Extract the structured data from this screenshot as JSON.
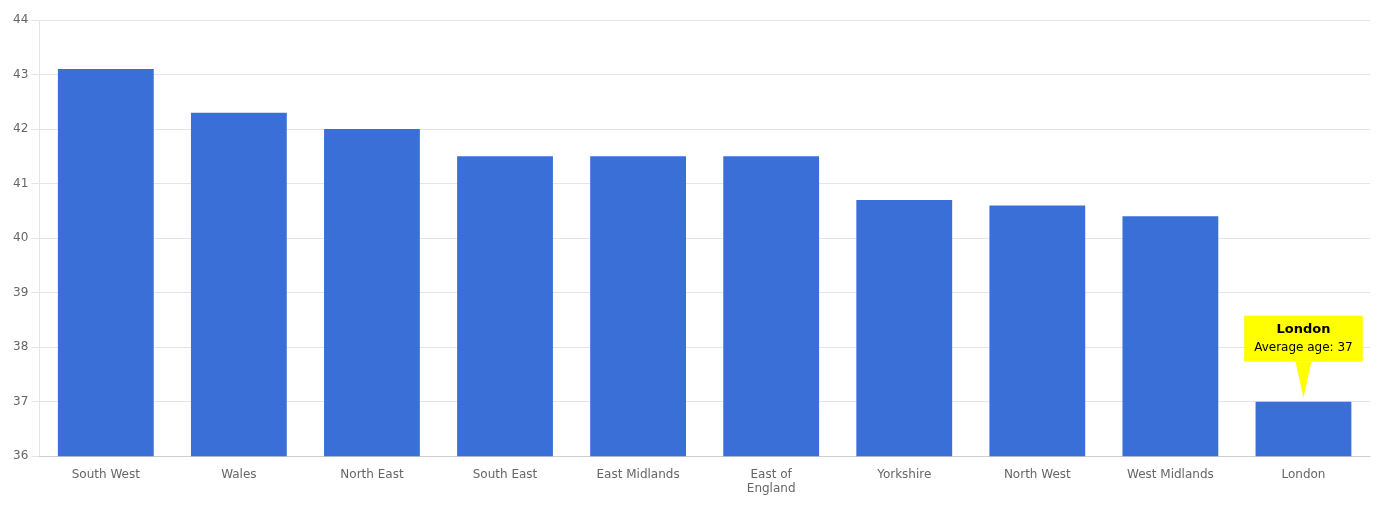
{
  "chart_data": {
    "type": "bar",
    "categories": [
      "South West",
      "Wales",
      "North East",
      "South East",
      "East Midlands",
      "East of\nEngland",
      "Yorkshire",
      "North West",
      "West Midlands",
      "London"
    ],
    "values": [
      43.1,
      42.3,
      42.0,
      41.5,
      41.5,
      41.5,
      40.7,
      40.6,
      40.4,
      37.0
    ],
    "color": "#3a6fd8",
    "ylim": [
      36,
      44
    ],
    "yticks": [
      36,
      37,
      38,
      39,
      40,
      41,
      42,
      43,
      44
    ],
    "grid": true,
    "annotations": [
      "London",
      "Average age: 37"
    ]
  }
}
